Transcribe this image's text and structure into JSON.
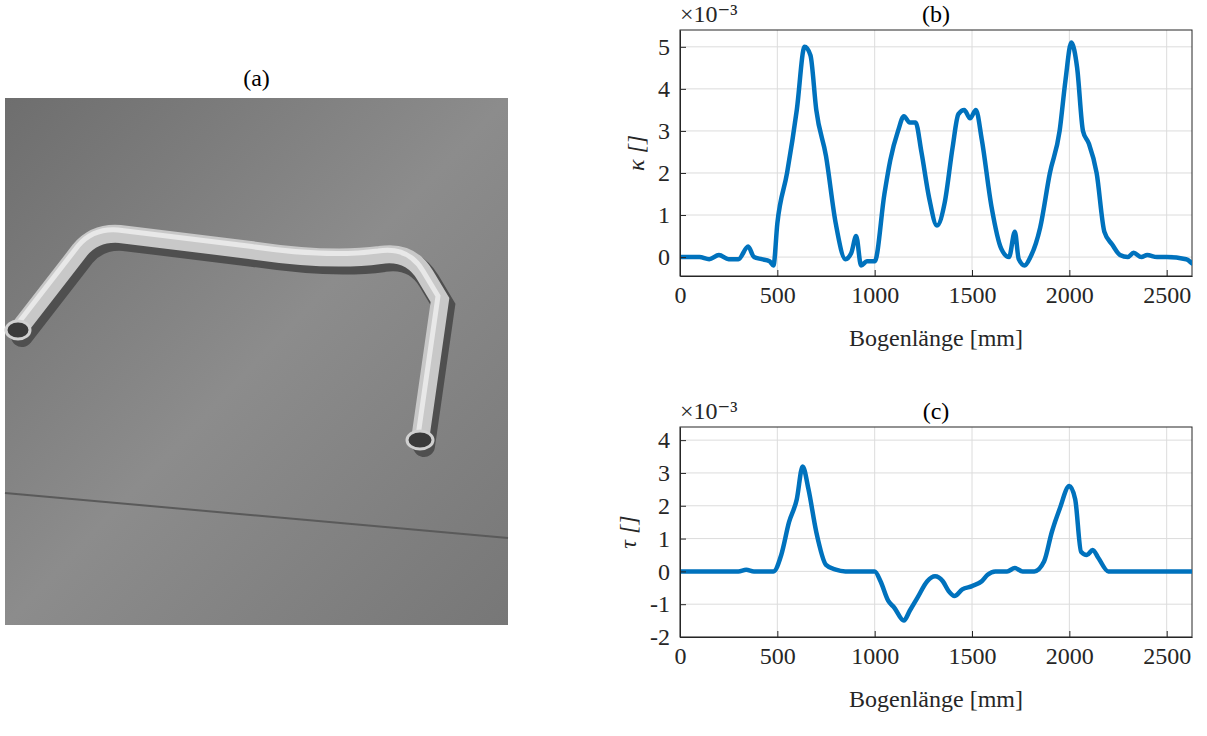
{
  "chart_data": [
    {
      "type": "image",
      "title": "(a)"
    },
    {
      "type": "line",
      "title": "(b)",
      "x_label": "Bogenlänge [mm]",
      "y_label": "κ []",
      "annotations": [
        "×10⁻³"
      ],
      "color": "#0072bd",
      "grid": true,
      "xlim": [
        0,
        2630
      ],
      "ylim": [
        -0.45,
        5.4
      ],
      "xticks": [
        0,
        500,
        1000,
        1500,
        2000,
        2500
      ],
      "yticks": [
        0,
        1,
        2,
        3,
        4,
        5
      ],
      "x": [
        0,
        100,
        150,
        200,
        250,
        300,
        350,
        380,
        420,
        460,
        480,
        500,
        550,
        600,
        640,
        670,
        700,
        750,
        800,
        850,
        880,
        905,
        930,
        960,
        1000,
        1050,
        1080,
        1120,
        1150,
        1180,
        1210,
        1240,
        1280,
        1320,
        1360,
        1400,
        1430,
        1460,
        1490,
        1520,
        1550,
        1600,
        1650,
        1690,
        1720,
        1740,
        1770,
        1800,
        1850,
        1900,
        1950,
        1980,
        2010,
        2040,
        2070,
        2100,
        2140,
        2180,
        2220,
        2260,
        2300,
        2330,
        2370,
        2400,
        2450,
        2500,
        2600,
        2630
      ],
      "values": [
        0,
        0,
        -0.05,
        0.05,
        -0.05,
        -0.05,
        0.25,
        0,
        -0.05,
        -0.1,
        -0.2,
        0.8,
        2,
        3.5,
        5,
        4.8,
        3.5,
        2.4,
        0.8,
        -0.05,
        0.1,
        0.5,
        -0.2,
        -0.1,
        -0.1,
        1.5,
        2.3,
        3,
        3.35,
        3.2,
        3.2,
        2.5,
        1.4,
        0.75,
        1.3,
        2.6,
        3.4,
        3.5,
        3.3,
        3.5,
        2.8,
        1.2,
        0.2,
        0,
        0.6,
        -0.05,
        -0.2,
        0,
        0.7,
        2,
        3,
        4.2,
        5.1,
        4.5,
        3,
        2.7,
        2,
        0.6,
        0.3,
        0.05,
        0,
        0.1,
        0,
        0.05,
        0,
        0,
        -0.05,
        -0.15
      ]
    },
    {
      "type": "line",
      "title": "(c)",
      "x_label": "Bogenlänge [mm]",
      "y_label": "τ []",
      "annotations": [
        "×10⁻³"
      ],
      "color": "#0072bd",
      "grid": true,
      "xlim": [
        0,
        2630
      ],
      "ylim": [
        -2,
        4.4
      ],
      "xticks": [
        0,
        500,
        1000,
        1500,
        2000,
        2500
      ],
      "yticks": [
        -2,
        -1,
        0,
        1,
        2,
        3,
        4
      ],
      "x": [
        0,
        300,
        340,
        380,
        480,
        520,
        560,
        600,
        630,
        660,
        700,
        750,
        800,
        850,
        900,
        1000,
        1030,
        1070,
        1100,
        1150,
        1180,
        1220,
        1270,
        1310,
        1350,
        1380,
        1410,
        1450,
        1500,
        1550,
        1580,
        1620,
        1680,
        1720,
        1760,
        1820,
        1870,
        1910,
        1950,
        2000,
        2030,
        2060,
        2090,
        2120,
        2150,
        2200,
        2300,
        2630
      ],
      "values": [
        0,
        0,
        0.05,
        0,
        0,
        0.5,
        1.5,
        2.2,
        3.2,
        2.5,
        1.2,
        0.2,
        0.05,
        0,
        0,
        0,
        -0.3,
        -0.9,
        -1.1,
        -1.5,
        -1.2,
        -0.8,
        -0.3,
        -0.15,
        -0.3,
        -0.6,
        -0.75,
        -0.55,
        -0.45,
        -0.3,
        -0.1,
        0,
        0,
        0.1,
        0,
        0,
        0.3,
        1.2,
        1.9,
        2.6,
        2.2,
        0.6,
        0.5,
        0.65,
        0.4,
        0,
        0,
        0
      ]
    }
  ]
}
